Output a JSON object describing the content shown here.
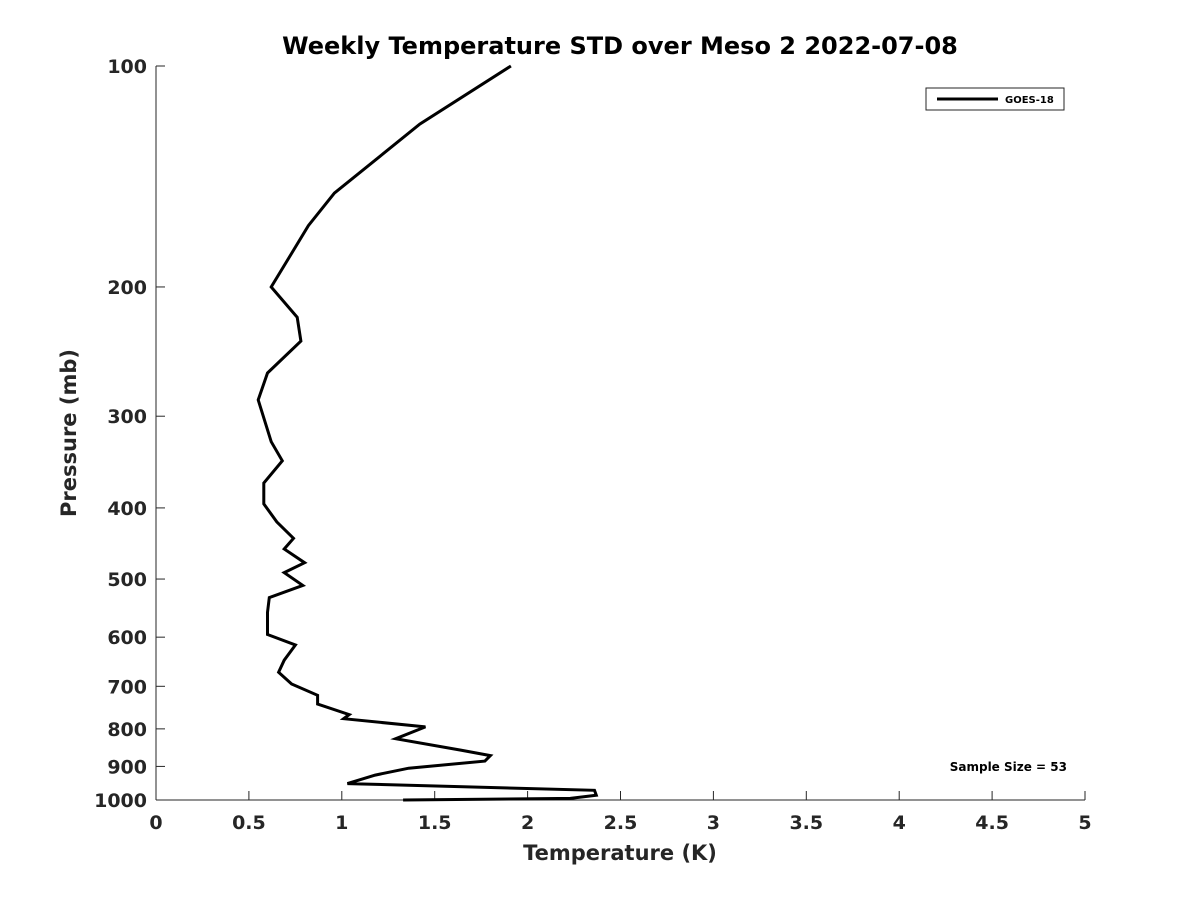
{
  "chart_data": {
    "type": "line",
    "title": "Weekly Temperature STD over Meso 2 2022-07-08",
    "xlabel": "Temperature (K)",
    "ylabel": "Pressure (mb)",
    "xlim": [
      0,
      5
    ],
    "ylim": [
      100,
      1000
    ],
    "yscale": "log",
    "y_reversed": true,
    "xticks": [
      0,
      0.5,
      1,
      1.5,
      2,
      2.5,
      3,
      3.5,
      4,
      4.5,
      5
    ],
    "xtick_labels": [
      "0",
      "0.5",
      "1",
      "1.5",
      "2",
      "2.5",
      "3",
      "3.5",
      "4",
      "4.5",
      "5"
    ],
    "yticks": [
      100,
      200,
      300,
      400,
      500,
      600,
      700,
      800,
      900,
      1000
    ],
    "ytick_labels": [
      "100",
      "200",
      "300",
      "400",
      "500",
      "600",
      "700",
      "800",
      "900",
      "1000"
    ],
    "grid": false,
    "legend_position": "top-right",
    "series": [
      {
        "name": "GOES-18",
        "color": "#000000",
        "x": [
          1.91,
          1.42,
          0.96,
          0.82,
          0.73,
          0.62,
          0.76,
          0.78,
          0.6,
          0.55,
          0.62,
          0.68,
          0.58,
          0.58,
          0.65,
          0.74,
          0.69,
          0.8,
          0.69,
          0.79,
          0.61,
          0.6,
          0.6,
          0.75,
          0.69,
          0.66,
          0.73,
          0.87,
          0.87,
          1.04,
          1.01,
          1.45,
          1.29,
          1.64,
          1.8,
          1.77,
          1.36,
          1.18,
          1.03,
          2.36,
          2.37,
          2.23,
          1.33
        ],
        "y": [
          100,
          120,
          149,
          165,
          180,
          200,
          220,
          237,
          262,
          285,
          325,
          345,
          370,
          395,
          418,
          440,
          455,
          475,
          490,
          510,
          530,
          555,
          595,
          615,
          645,
          670,
          695,
          720,
          740,
          765,
          775,
          795,
          825,
          855,
          870,
          885,
          905,
          925,
          950,
          970,
          985,
          995,
          1000
        ]
      }
    ],
    "annotations": [
      "Sample Size = 53"
    ]
  }
}
